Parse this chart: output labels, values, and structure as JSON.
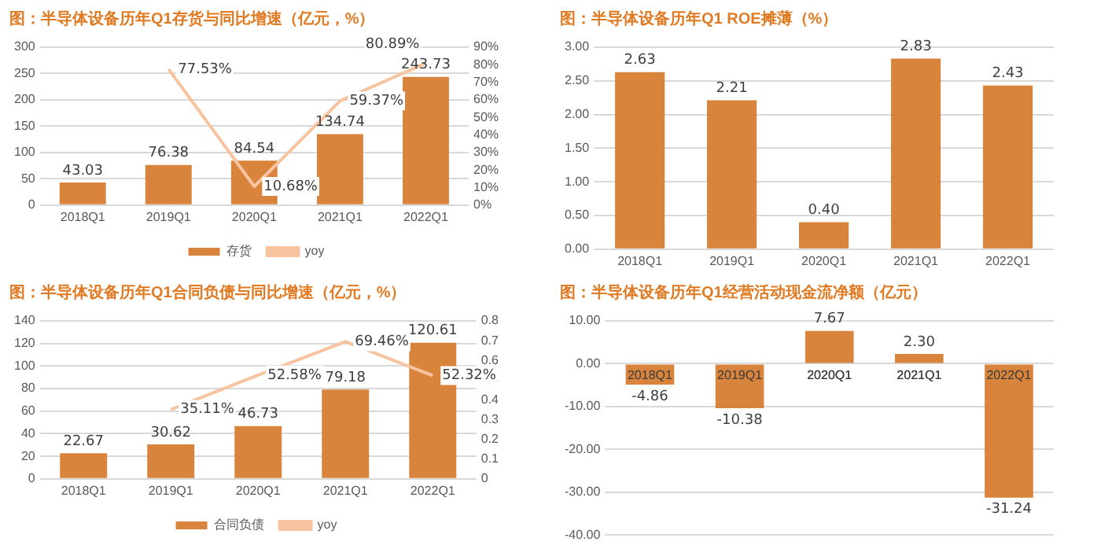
{
  "chart_data": [
    {
      "type": "bar",
      "title": "图：半导体设备历年Q1存货与同比增速（亿元，%）",
      "categories": [
        "2018Q1",
        "2019Q1",
        "2020Q1",
        "2021Q1",
        "2022Q1"
      ],
      "series": [
        {
          "name": "存货",
          "type": "bar",
          "color": "#d9843c",
          "values": [
            43.03,
            76.38,
            84.54,
            134.74,
            243.73
          ],
          "value_labels": [
            "43.03",
            "76.38",
            "84.54",
            "134.74",
            "243.73"
          ]
        },
        {
          "name": "yoy",
          "type": "line",
          "axis": "y2",
          "color": "#f8c4a0",
          "values": [
            null,
            77.53,
            10.68,
            59.37,
            80.89
          ],
          "value_labels": [
            null,
            "77.53%",
            "10.68%",
            "59.37%",
            "80.89%"
          ]
        }
      ],
      "ylim": [
        0,
        300
      ],
      "yticks": [
        0,
        50,
        100,
        150,
        200,
        250,
        300
      ],
      "y2lim": [
        0,
        90
      ],
      "y2ticks": [
        {
          "value": 0,
          "label": "0%"
        },
        {
          "value": 10,
          "label": "10%"
        },
        {
          "value": 20,
          "label": "20%"
        },
        {
          "value": 30,
          "label": "30%"
        },
        {
          "value": 40,
          "label": "40%"
        },
        {
          "value": 50,
          "label": "50%"
        },
        {
          "value": 60,
          "label": "60%"
        },
        {
          "value": 70,
          "label": "70%"
        },
        {
          "value": 80,
          "label": "80%"
        },
        {
          "value": 90,
          "label": "90%"
        }
      ],
      "grid": "y",
      "legend": "bottom",
      "marker": "none",
      "line_style": "solid"
    },
    {
      "type": "bar",
      "title": "图：半导体设备历年Q1 ROE摊薄（%）",
      "categories": [
        "2018Q1",
        "2019Q1",
        "2020Q1",
        "2021Q1",
        "2022Q1"
      ],
      "values": [
        2.63,
        2.21,
        0.4,
        2.83,
        2.43
      ],
      "color": "#d9843c",
      "value_labels": [
        "2.63",
        "2.21",
        "0.40",
        "2.83",
        "2.43"
      ],
      "ylim": [
        0,
        3
      ],
      "yticks": [
        {
          "value": 0,
          "label": "0.00"
        },
        {
          "value": 0.5,
          "label": "0.50"
        },
        {
          "value": 1,
          "label": "1.00"
        },
        {
          "value": 1.5,
          "label": "1.50"
        },
        {
          "value": 2,
          "label": "2.00"
        },
        {
          "value": 2.5,
          "label": "2.50"
        },
        {
          "value": 3,
          "label": "3.00"
        }
      ],
      "grid": "y"
    },
    {
      "type": "bar",
      "title": "图：半导体设备历年Q1合同负债与同比增速（亿元，%）",
      "categories": [
        "2018Q1",
        "2019Q1",
        "2020Q1",
        "2021Q1",
        "2022Q1"
      ],
      "series": [
        {
          "name": "合同负债",
          "type": "bar",
          "color": "#d9843c",
          "values": [
            22.67,
            30.62,
            46.73,
            79.18,
            120.61
          ],
          "value_labels": [
            "22.67",
            "30.62",
            "46.73",
            "79.18",
            "120.61"
          ]
        },
        {
          "name": "yoy",
          "type": "line",
          "axis": "y2",
          "color": "#f8c4a0",
          "values": [
            null,
            0.3511,
            0.5258,
            0.6946,
            0.5232
          ],
          "value_labels": [
            null,
            "35.11%",
            "52.58%",
            "69.46%",
            "52.32%"
          ]
        }
      ],
      "ylim": [
        0,
        140
      ],
      "yticks": [
        0,
        20,
        40,
        60,
        80,
        100,
        120,
        140
      ],
      "y2lim": [
        0,
        0.8
      ],
      "y2ticks": [
        0,
        0.1,
        0.2,
        0.3,
        0.4,
        0.5,
        0.6,
        0.7,
        0.8
      ],
      "grid": "y",
      "legend": "bottom",
      "marker": "none",
      "line_style": "solid"
    },
    {
      "type": "bar",
      "title": "图：半导体设备历年Q1经营活动现金流净额（亿元）",
      "categories": [
        "2018Q1",
        "2019Q1",
        "2020Q1",
        "2021Q1",
        "2022Q1"
      ],
      "values": [
        -4.86,
        -10.38,
        7.67,
        2.3,
        -31.24
      ],
      "color": "#d9843c",
      "value_labels": [
        "-4.86",
        "-10.38",
        "7.67",
        "2.30",
        "-31.24"
      ],
      "ylim": [
        -40,
        10
      ],
      "yticks": [
        {
          "value": -40,
          "label": "-40.00"
        },
        {
          "value": -30,
          "label": "-30.00"
        },
        {
          "value": -20,
          "label": "-20.00"
        },
        {
          "value": -10,
          "label": "-10.00"
        },
        {
          "value": 0,
          "label": "0.00"
        },
        {
          "value": 10,
          "label": "10.00"
        }
      ],
      "grid": "y"
    }
  ]
}
